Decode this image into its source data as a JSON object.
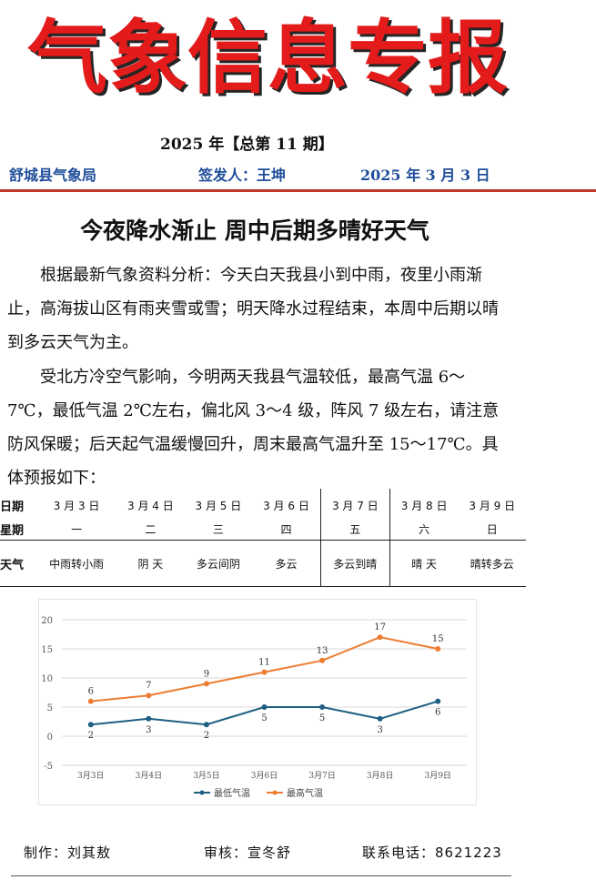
{
  "masthead": {
    "title": "气象信息专报"
  },
  "issue": {
    "text": "2025 年【总第 11 期】"
  },
  "meta": {
    "agency": "舒城县气象局",
    "signer": "签发人：王坤",
    "date": "2025 年 3 月 3 日"
  },
  "headline": "今夜降水渐止  周中后期多晴好天气",
  "paragraphs": [
    "根据最新气象资料分析：今天白天我县小到中雨，夜里小雨渐止，高海拔山区有雨夹雪或雪；明天降水过程结束，本周中后期以晴到多云天气为主。",
    "受北方冷空气影响，今明两天我县气温较低，最高气温 6～7℃，最低气温 2℃左右，偏北风 3～4 级，阵风 7 级左右，请注意防风保暖；后天起气温缓慢回升，周末最高气温升至 15～17℃。具体预报如下："
  ],
  "forecast_table": {
    "row_labels": [
      "日期",
      "星期",
      "天气"
    ],
    "dates": [
      "3 月 3 日",
      "3 月 4 日",
      "3 月 5 日",
      "3 月 6 日",
      "3 月 7 日",
      "3 月 8 日",
      "3 月 9 日"
    ],
    "weekdays": [
      "一",
      "二",
      "三",
      "四",
      "五",
      "六",
      "日"
    ],
    "weather": [
      "中雨转小雨",
      "阴 天",
      "多云间阴",
      "多云",
      "多云到晴",
      "晴 天",
      "晴转多云"
    ]
  },
  "chart_data": {
    "type": "line",
    "categories": [
      "3月3日",
      "3月4日",
      "3月5日",
      "3月6日",
      "3月7日",
      "3月8日",
      "3月9日"
    ],
    "series": [
      {
        "name": "最低气温",
        "values": [
          2,
          3,
          2,
          5,
          5,
          3,
          6
        ],
        "color": "#1f5f82"
      },
      {
        "name": "最高气温",
        "values": [
          6,
          7,
          9,
          11,
          13,
          17,
          15
        ],
        "color": "#ed7d31"
      }
    ],
    "ylim": [
      -5,
      20
    ],
    "yticks": [
      "-5",
      "0",
      "5",
      "10",
      "15",
      "20"
    ],
    "grid": true,
    "legend_position": "bottom"
  },
  "footer": {
    "maker": "制作：刘其敖",
    "reviewer": "审核：宣冬舒",
    "phone": "联系电话：8621223"
  },
  "colors": {
    "masthead_red": "#e31b1b",
    "rule_red": "#c0392b",
    "meta_blue": "#1f4e9a"
  }
}
